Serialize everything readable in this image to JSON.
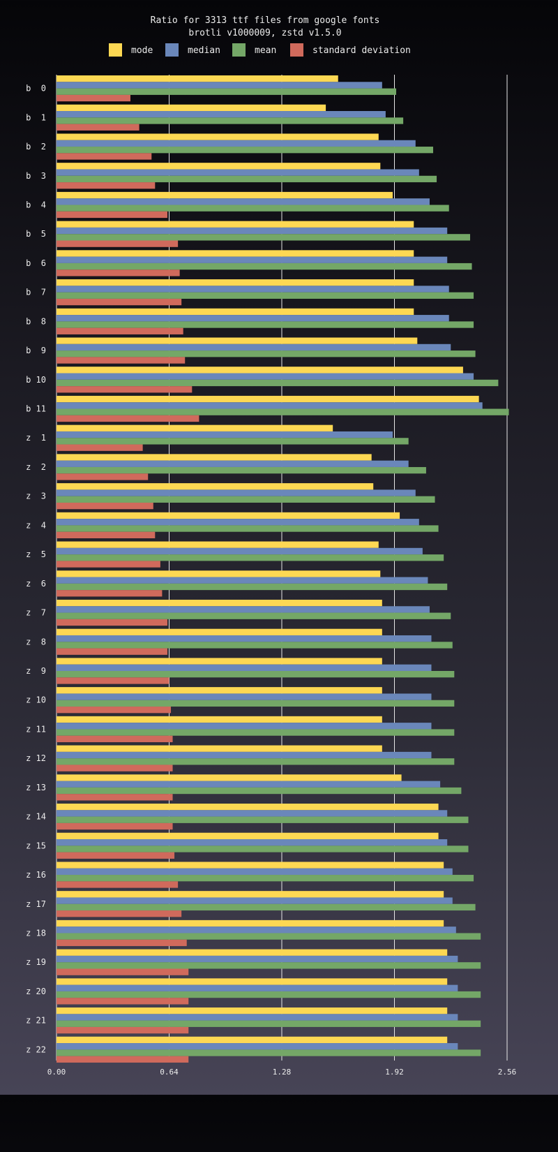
{
  "chart_data": {
    "type": "bar",
    "orientation": "horizontal",
    "title": "Ratio for 3313 ttf files from google fonts",
    "subtitle": "brotli v1000009, zstd v1.5.0",
    "xlabel": "",
    "ylabel": "",
    "xlim": [
      0,
      2.56
    ],
    "grid": true,
    "legend_position": "top-center",
    "x_ticks": [
      "0.00",
      "0.64",
      "1.28",
      "1.92",
      "2.56"
    ],
    "x_tick_values": [
      0,
      0.64,
      1.28,
      1.92,
      2.56
    ],
    "categories": [
      "b  0",
      "b  1",
      "b  2",
      "b  3",
      "b  4",
      "b  5",
      "b  6",
      "b  7",
      "b  8",
      "b  9",
      "b 10",
      "b 11",
      "z  1",
      "z  2",
      "z  3",
      "z  4",
      "z  5",
      "z  6",
      "z  7",
      "z  8",
      "z  9",
      "z 10",
      "z 11",
      "z 12",
      "z 13",
      "z 14",
      "z 15",
      "z 16",
      "z 17",
      "z 18",
      "z 19",
      "z 20",
      "z 21",
      "z 22"
    ],
    "series": [
      {
        "name": "mode",
        "color": "#fdd853",
        "values": [
          1.6,
          1.53,
          1.83,
          1.84,
          1.91,
          2.03,
          2.03,
          2.03,
          2.03,
          2.05,
          2.31,
          2.4,
          1.57,
          1.79,
          1.8,
          1.95,
          1.83,
          1.84,
          1.85,
          1.85,
          1.85,
          1.85,
          1.85,
          1.85,
          1.96,
          2.17,
          2.17,
          2.2,
          2.2,
          2.2,
          2.22,
          2.22,
          2.22,
          2.22
        ]
      },
      {
        "name": "median",
        "color": "#6a87ba",
        "values": [
          1.85,
          1.87,
          2.04,
          2.06,
          2.12,
          2.22,
          2.22,
          2.23,
          2.23,
          2.24,
          2.37,
          2.42,
          1.91,
          2.0,
          2.04,
          2.06,
          2.08,
          2.11,
          2.12,
          2.13,
          2.13,
          2.13,
          2.13,
          2.13,
          2.18,
          2.22,
          2.22,
          2.25,
          2.25,
          2.27,
          2.28,
          2.28,
          2.28,
          2.28
        ]
      },
      {
        "name": "mean",
        "color": "#74a767",
        "values": [
          1.93,
          1.97,
          2.14,
          2.16,
          2.23,
          2.35,
          2.36,
          2.37,
          2.37,
          2.38,
          2.51,
          2.57,
          2.0,
          2.1,
          2.15,
          2.17,
          2.2,
          2.22,
          2.24,
          2.25,
          2.26,
          2.26,
          2.26,
          2.26,
          2.3,
          2.34,
          2.34,
          2.37,
          2.38,
          2.41,
          2.41,
          2.41,
          2.41,
          2.41
        ]
      },
      {
        "name": "standard deviation",
        "color": "#d06a5c",
        "values": [
          0.42,
          0.47,
          0.54,
          0.56,
          0.63,
          0.69,
          0.7,
          0.71,
          0.72,
          0.73,
          0.77,
          0.81,
          0.49,
          0.52,
          0.55,
          0.56,
          0.59,
          0.6,
          0.63,
          0.63,
          0.64,
          0.65,
          0.66,
          0.66,
          0.66,
          0.66,
          0.67,
          0.69,
          0.71,
          0.74,
          0.75,
          0.75,
          0.75,
          0.75
        ]
      }
    ]
  }
}
